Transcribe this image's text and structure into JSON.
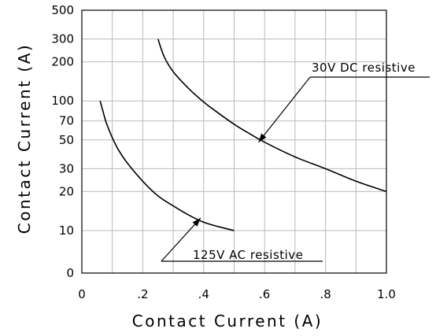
{
  "chart_data": {
    "type": "line",
    "title": "",
    "xlabel": "Contact  Current  (A)",
    "ylabel": "Contact  Current  (A)",
    "x_ticks": [
      {
        "value": 0,
        "label": "0"
      },
      {
        "value": 0.2,
        "label": ".2"
      },
      {
        "value": 0.4,
        "label": ".4"
      },
      {
        "value": 0.6,
        "label": ".6"
      },
      {
        "value": 0.8,
        "label": ".8"
      },
      {
        "value": 1.0,
        "label": "1.0"
      }
    ],
    "x_minor_gridlines": [
      0.1,
      0.3,
      0.5,
      0.7,
      0.9
    ],
    "y_ticks": [
      {
        "value": 10,
        "label": "10"
      },
      {
        "value": 20,
        "label": "20"
      },
      {
        "value": 30,
        "label": "30"
      },
      {
        "value": 50,
        "label": "50"
      },
      {
        "value": 70,
        "label": "70"
      },
      {
        "value": 100,
        "label": "100"
      },
      {
        "value": 200,
        "label": "200"
      },
      {
        "value": 300,
        "label": "300"
      },
      {
        "value": 500,
        "label": "500"
      }
    ],
    "y_bottom_label": "0",
    "y_scale": "log",
    "xlim": [
      0,
      1.0
    ],
    "ylim": [
      5,
      500
    ],
    "grid": true,
    "series": [
      {
        "name": "30V DC resistive",
        "x": [
          0.25,
          0.27,
          0.3,
          0.35,
          0.4,
          0.45,
          0.5,
          0.55,
          0.6,
          0.7,
          0.8,
          0.9,
          1.0
        ],
        "y": [
          300,
          220,
          168,
          125,
          98,
          80,
          66,
          56,
          48,
          37,
          30,
          24,
          20
        ]
      },
      {
        "name": "125V AC resistive",
        "x": [
          0.06,
          0.07,
          0.08,
          0.1,
          0.12,
          0.15,
          0.2,
          0.25,
          0.3,
          0.35,
          0.4,
          0.45,
          0.5
        ],
        "y": [
          100,
          82,
          68,
          52,
          42,
          33,
          24,
          18.5,
          15.5,
          13.2,
          11.6,
          10.7,
          10
        ]
      }
    ],
    "annotations": [
      {
        "text": "30V DC resistive",
        "series": "30V DC resistive",
        "point": [
          0.58,
          48
        ]
      },
      {
        "text": "125V AC resistive",
        "series": "125V AC resistive",
        "point": [
          0.39,
          12.5
        ]
      }
    ]
  }
}
